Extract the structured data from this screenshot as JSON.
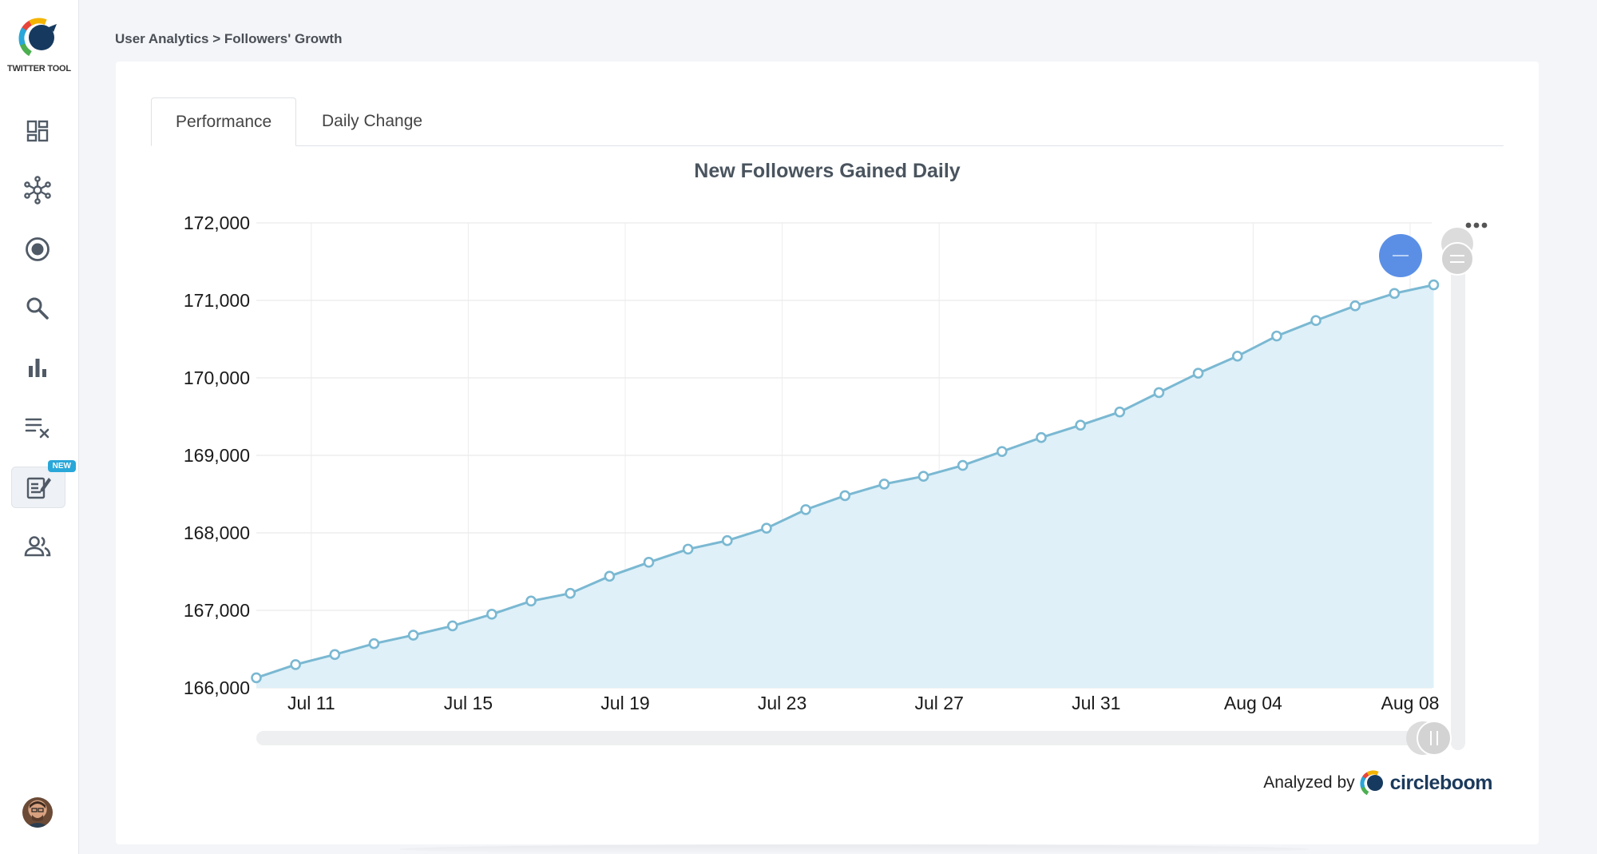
{
  "app": {
    "name": "TWITTER TOOL"
  },
  "breadcrumb": "User Analytics > Followers' Growth",
  "sidebar": {
    "items": [
      {
        "icon": "dashboard-icon"
      },
      {
        "icon": "network-icon"
      },
      {
        "icon": "target-icon"
      },
      {
        "icon": "search-icon"
      },
      {
        "icon": "bar-chart-icon"
      },
      {
        "icon": "clear-list-icon"
      },
      {
        "icon": "post-editor-icon",
        "badge": "NEW"
      },
      {
        "icon": "users-icon"
      }
    ]
  },
  "tabs": [
    {
      "label": "Performance",
      "active": true
    },
    {
      "label": "Daily Change",
      "active": false
    }
  ],
  "credit": {
    "prefix": "Analyzed by",
    "brand": "circleboom"
  },
  "colors": {
    "line": "#7ab8d2",
    "area": "#dff0f8",
    "zoom_button": "#5b8fe6",
    "badge": "#29a7d9"
  },
  "chart_data": {
    "type": "area",
    "title": "New Followers Gained Daily",
    "xlabel": "",
    "ylabel": "",
    "ylim": [
      166000,
      172000
    ],
    "y_ticks": [
      "172,000",
      "171,000",
      "170,000",
      "169,000",
      "168,000",
      "167,000",
      "166,000"
    ],
    "y_tick_values": [
      172000,
      171000,
      170000,
      169000,
      168000,
      167000,
      166000
    ],
    "x_ticks": [
      "Jul 11",
      "Jul 15",
      "Jul 19",
      "Jul 23",
      "Jul 27",
      "Jul 31",
      "Aug 04",
      "Aug 08"
    ],
    "x_tick_day_index": [
      1,
      5,
      9,
      13,
      17,
      21,
      25,
      29
    ],
    "x_day_range": [
      -0.4,
      29.55
    ],
    "series": [
      {
        "name": "Followers",
        "values": [
          166130,
          166300,
          166430,
          166570,
          166680,
          166800,
          166950,
          167120,
          167220,
          167440,
          167620,
          167790,
          167900,
          168060,
          168300,
          168480,
          168630,
          168730,
          168870,
          169050,
          169230,
          169390,
          169560,
          169810,
          170060,
          170280,
          170540,
          170740,
          170930,
          171090,
          171200
        ]
      }
    ],
    "x_start_day": -0.4,
    "grid": true,
    "legend": "none"
  }
}
